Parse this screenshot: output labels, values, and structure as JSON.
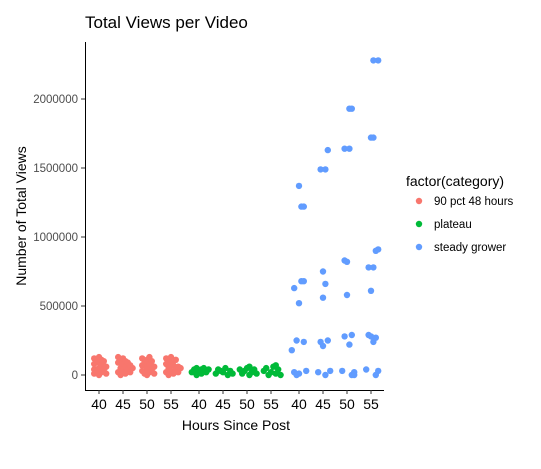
{
  "chart_data": {
    "type": "scatter",
    "title": "Total Views per Video",
    "xlabel": "Hours Since Post",
    "ylabel": "Number of Total Views",
    "ylim": [
      -100000,
      2400000
    ],
    "y_ticks": [
      0,
      500000,
      1000000,
      1500000,
      2000000
    ],
    "y_tick_labels": [
      "0",
      "500000",
      "1000000",
      "1500000",
      "2000000"
    ],
    "x_groups": [
      {
        "name": "90 pct 48 hours",
        "ticks": [
          "40",
          "45",
          "50",
          "55"
        ]
      },
      {
        "name": "plateau",
        "ticks": [
          "40",
          "45",
          "50",
          "55"
        ]
      },
      {
        "name": "steady grower",
        "ticks": [
          "40",
          "45",
          "50",
          "55"
        ]
      }
    ],
    "grid": false,
    "legend": {
      "title": "factor(category)",
      "placement": "right"
    },
    "series": [
      {
        "name": "90 pct 48 hours",
        "color": "#F8766D",
        "points": [
          [
            39,
            10000
          ],
          [
            39,
            40000
          ],
          [
            39,
            80000
          ],
          [
            39,
            120000
          ],
          [
            39.5,
            30000
          ],
          [
            39.5,
            100000
          ],
          [
            40,
            0
          ],
          [
            40,
            50000
          ],
          [
            40,
            90000
          ],
          [
            40,
            130000
          ],
          [
            40.5,
            20000
          ],
          [
            40.5,
            70000
          ],
          [
            40.5,
            110000
          ],
          [
            41,
            40000
          ],
          [
            41,
            100000
          ],
          [
            41.5,
            10000
          ],
          [
            41.5,
            60000
          ],
          [
            44,
            20000
          ],
          [
            44,
            90000
          ],
          [
            44,
            130000
          ],
          [
            44.5,
            0
          ],
          [
            44.5,
            50000
          ],
          [
            44.5,
            110000
          ],
          [
            45,
            30000
          ],
          [
            45,
            80000
          ],
          [
            45,
            120000
          ],
          [
            45.5,
            10000
          ],
          [
            45.5,
            60000
          ],
          [
            45.5,
            100000
          ],
          [
            46,
            40000
          ],
          [
            46,
            90000
          ],
          [
            46.5,
            20000
          ],
          [
            46.5,
            70000
          ],
          [
            47,
            50000
          ],
          [
            49,
            30000
          ],
          [
            49,
            70000
          ],
          [
            49,
            120000
          ],
          [
            49.5,
            10000
          ],
          [
            49.5,
            90000
          ],
          [
            50,
            0
          ],
          [
            50,
            50000
          ],
          [
            50,
            110000
          ],
          [
            50.5,
            20000
          ],
          [
            50.5,
            80000
          ],
          [
            50.5,
            130000
          ],
          [
            51,
            40000
          ],
          [
            51,
            100000
          ],
          [
            51.5,
            10000
          ],
          [
            51.5,
            60000
          ],
          [
            54,
            20000
          ],
          [
            54,
            80000
          ],
          [
            54,
            120000
          ],
          [
            54.5,
            0
          ],
          [
            54.5,
            50000
          ],
          [
            54.5,
            100000
          ],
          [
            55,
            30000
          ],
          [
            55,
            90000
          ],
          [
            55,
            130000
          ],
          [
            55.5,
            10000
          ],
          [
            55.5,
            70000
          ],
          [
            56,
            40000
          ],
          [
            56,
            110000
          ],
          [
            56.5,
            20000
          ],
          [
            56.5,
            60000
          ],
          [
            57,
            50000
          ]
        ]
      },
      {
        "name": "plateau",
        "color": "#00BA38",
        "points": [
          [
            38.5,
            20000
          ],
          [
            39,
            40000
          ],
          [
            39.5,
            0
          ],
          [
            40,
            30000
          ],
          [
            40.5,
            10000
          ],
          [
            41,
            50000
          ],
          [
            41.5,
            20000
          ],
          [
            42,
            40000
          ],
          [
            39.5,
            50000
          ],
          [
            40.5,
            40000
          ],
          [
            43.5,
            10000
          ],
          [
            44,
            40000
          ],
          [
            45,
            20000
          ],
          [
            45.5,
            50000
          ],
          [
            46,
            0
          ],
          [
            46.5,
            30000
          ],
          [
            47,
            10000
          ],
          [
            44.5,
            30000
          ],
          [
            48.5,
            40000
          ],
          [
            49,
            10000
          ],
          [
            49.5,
            30000
          ],
          [
            50,
            50000
          ],
          [
            50.5,
            0
          ],
          [
            51,
            20000
          ],
          [
            51.5,
            40000
          ],
          [
            52,
            10000
          ],
          [
            50.5,
            60000
          ],
          [
            53.5,
            30000
          ],
          [
            54,
            50000
          ],
          [
            54.5,
            0
          ],
          [
            55,
            20000
          ],
          [
            55.5,
            60000
          ],
          [
            56,
            10000
          ],
          [
            56.5,
            40000
          ],
          [
            57,
            0
          ],
          [
            56,
            70000
          ]
        ]
      },
      {
        "name": "steady grower",
        "color": "#619CFF",
        "points": [
          [
            38.5,
            180000
          ],
          [
            39,
            20000
          ],
          [
            39,
            630000
          ],
          [
            39.5,
            250000
          ],
          [
            40,
            10000
          ],
          [
            40,
            1370000
          ],
          [
            40.5,
            1220000
          ],
          [
            40,
            520000
          ],
          [
            40.5,
            680000
          ],
          [
            41,
            1220000
          ],
          [
            41,
            680000
          ],
          [
            41,
            240000
          ],
          [
            41.5,
            30000
          ],
          [
            39.5,
            0
          ],
          [
            44,
            20000
          ],
          [
            44.5,
            240000
          ],
          [
            44.5,
            1490000
          ],
          [
            45,
            750000
          ],
          [
            45,
            560000
          ],
          [
            45.5,
            1490000
          ],
          [
            45.5,
            660000
          ],
          [
            46,
            1630000
          ],
          [
            46,
            250000
          ],
          [
            46.5,
            30000
          ],
          [
            45.5,
            0
          ],
          [
            45,
            210000
          ],
          [
            49,
            30000
          ],
          [
            49.5,
            280000
          ],
          [
            49.5,
            1640000
          ],
          [
            50,
            820000
          ],
          [
            50,
            580000
          ],
          [
            50.5,
            1930000
          ],
          [
            50.5,
            1640000
          ],
          [
            51,
            1930000
          ],
          [
            51,
            290000
          ],
          [
            51.5,
            20000
          ],
          [
            49.5,
            830000
          ],
          [
            50.5,
            220000
          ],
          [
            51,
            0
          ],
          [
            51.5,
            1
          ],
          [
            54,
            40000
          ],
          [
            54.5,
            290000
          ],
          [
            54.5,
            780000
          ],
          [
            55,
            1720000
          ],
          [
            55,
            610000
          ],
          [
            55.5,
            2280000
          ],
          [
            55.5,
            1720000
          ],
          [
            56,
            900000
          ],
          [
            56,
            270000
          ],
          [
            56.5,
            2280000
          ],
          [
            56.5,
            910000
          ],
          [
            56.5,
            30000
          ],
          [
            55,
            280000
          ],
          [
            55.5,
            240000
          ],
          [
            56,
            0
          ],
          [
            55.5,
            780000
          ]
        ]
      }
    ]
  }
}
